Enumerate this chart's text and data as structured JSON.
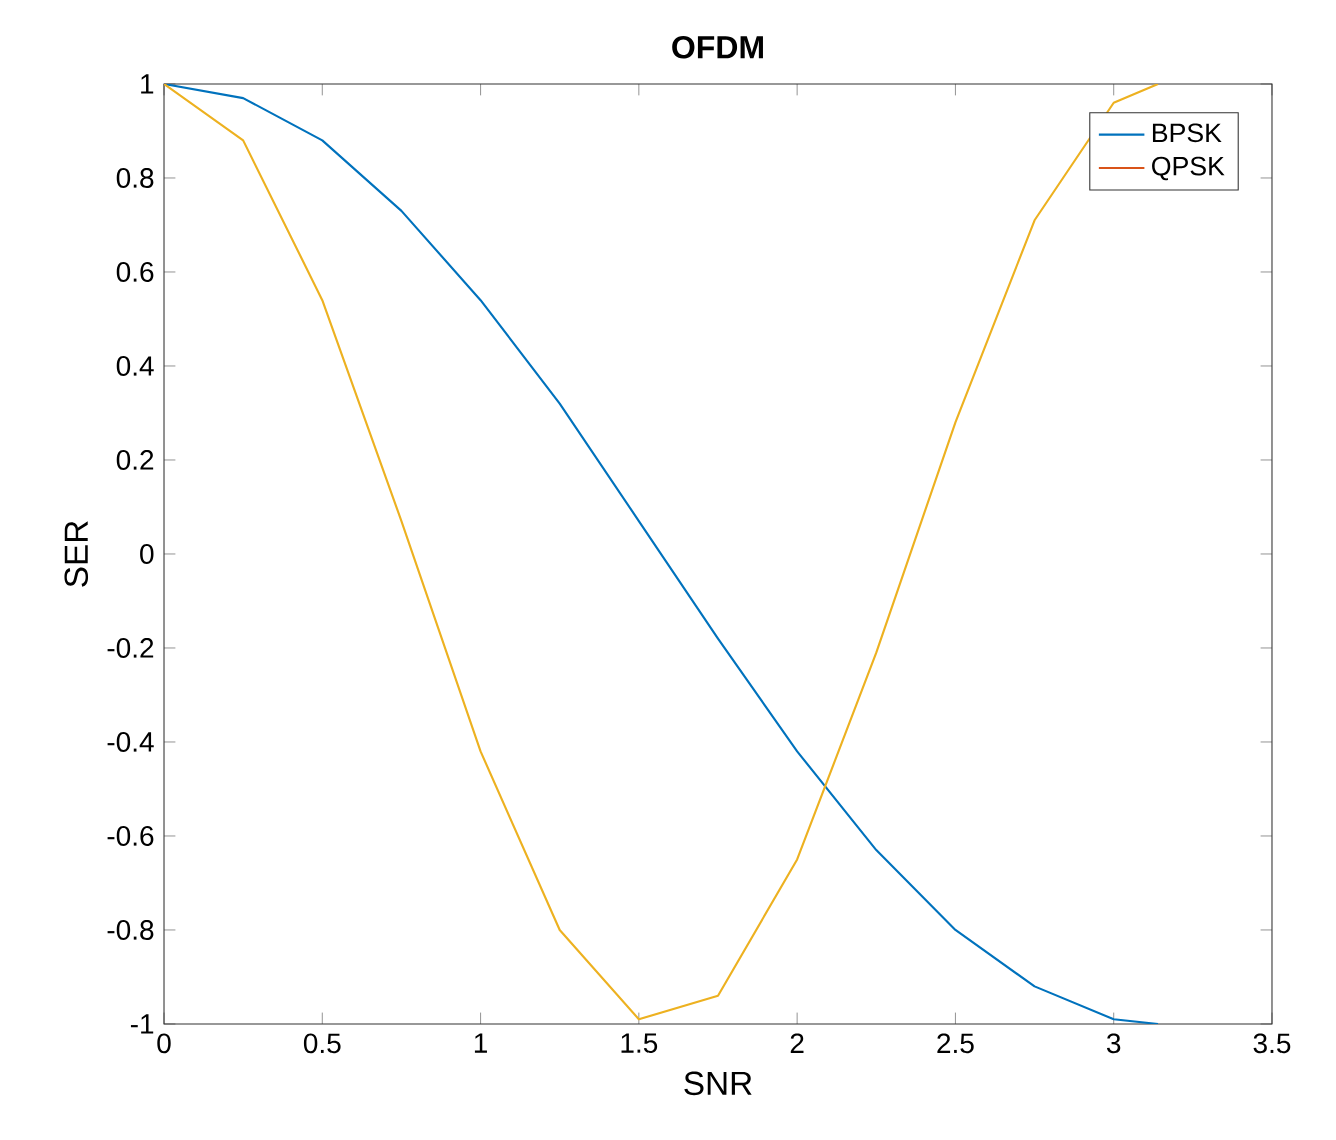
{
  "chart_data": {
    "type": "line",
    "title": "OFDM",
    "xlabel": "SNR",
    "ylabel": "SER",
    "x": [
      0,
      0.25,
      0.5,
      0.75,
      1,
      1.25,
      1.5,
      1.75,
      2,
      2.25,
      2.5,
      2.75,
      3,
      3.14
    ],
    "series": [
      {
        "name": "BPSK",
        "color": "#0072bd",
        "values": [
          1,
          0.97,
          0.88,
          0.73,
          0.54,
          0.32,
          0.07,
          -0.18,
          -0.42,
          -0.63,
          -0.8,
          -0.92,
          -0.99,
          -1
        ]
      },
      {
        "name": "QPSK",
        "color": "#d95319",
        "values": [
          null,
          null,
          null,
          null,
          null,
          null,
          null,
          null,
          null,
          null,
          null,
          null,
          null,
          null
        ]
      },
      {
        "color": "#edb120",
        "values": [
          1,
          0.88,
          0.54,
          0.07,
          -0.42,
          -0.8,
          -0.99,
          -0.94,
          -0.65,
          -0.21,
          0.28,
          0.71,
          0.96,
          1
        ]
      }
    ],
    "xlim": [
      0,
      3.5
    ],
    "xticks": [
      0,
      0.5,
      1,
      1.5,
      2,
      2.5,
      3,
      3.5
    ],
    "ylim": [
      -1,
      1
    ],
    "yticks": [
      -1,
      -0.8,
      -0.6,
      -0.4,
      -0.2,
      0,
      0.2,
      0.4,
      0.6,
      0.8,
      1
    ],
    "legend": "top right",
    "grid": false,
    "marker": "none",
    "line_style": "solid"
  }
}
